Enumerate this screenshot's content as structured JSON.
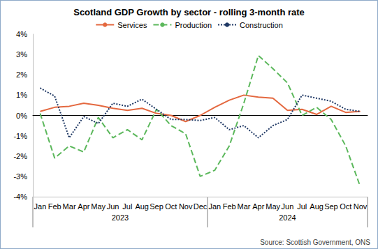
{
  "chart_data": {
    "type": "line",
    "title": "Scotland GDP Growth by sector - rolling 3-month rate",
    "source": "Source: Scottish Government, ONS",
    "categories": [
      "Jan",
      "Feb",
      "Mar",
      "Apr",
      "May",
      "Jun",
      "Jul",
      "Aug",
      "Sep",
      "Oct",
      "Nov",
      "Dec",
      "Jan",
      "Feb",
      "Mar",
      "Apr",
      "May",
      "Jun",
      "Jul",
      "Aug",
      "Sep",
      "Oct",
      "Nov"
    ],
    "groups": [
      {
        "label": "2023",
        "size": 12
      },
      {
        "label": "2024",
        "size": 11
      }
    ],
    "series": [
      {
        "name": "Services",
        "color": "#e4683f",
        "line_style": "solid",
        "values": [
          0.2,
          0.4,
          0.45,
          0.6,
          0.5,
          0.35,
          0.25,
          0.35,
          0.1,
          0.0,
          -0.3,
          0.0,
          0.4,
          0.75,
          1.0,
          0.9,
          0.85,
          0.25,
          0.3,
          0.05,
          0.45,
          0.15,
          0.2
        ]
      },
      {
        "name": "Production",
        "color": "#5cb85c",
        "line_style": "dashed",
        "values": [
          0.1,
          -2.1,
          -1.5,
          -1.8,
          -0.1,
          -1.1,
          -0.7,
          -1.2,
          0.3,
          -0.5,
          -0.9,
          -3.0,
          -2.7,
          -1.5,
          0.6,
          2.95,
          2.3,
          1.6,
          0.0,
          0.4,
          -0.2,
          -1.5,
          -3.5
        ]
      },
      {
        "name": "Construction",
        "color": "#1f3864",
        "line_style": "dotted",
        "values": [
          1.35,
          0.95,
          -1.1,
          -0.05,
          -0.4,
          0.6,
          0.45,
          0.8,
          0.3,
          -0.2,
          -0.2,
          -0.25,
          -0.1,
          -0.7,
          -0.5,
          -1.1,
          -0.5,
          -0.2,
          1.0,
          0.85,
          0.7,
          0.3,
          0.2
        ]
      }
    ],
    "ylim": [
      -4,
      4
    ],
    "yticks": [
      {
        "value": -4,
        "label": "-4%"
      },
      {
        "value": -3,
        "label": "-3%"
      },
      {
        "value": -2,
        "label": "-2%"
      },
      {
        "value": -1,
        "label": "-1%"
      },
      {
        "value": 0,
        "label": "0%"
      },
      {
        "value": 1,
        "label": "1%"
      },
      {
        "value": 2,
        "label": "2%"
      },
      {
        "value": 3,
        "label": "3%"
      },
      {
        "value": 4,
        "label": "4%"
      }
    ],
    "grid": false,
    "legend": "top"
  }
}
